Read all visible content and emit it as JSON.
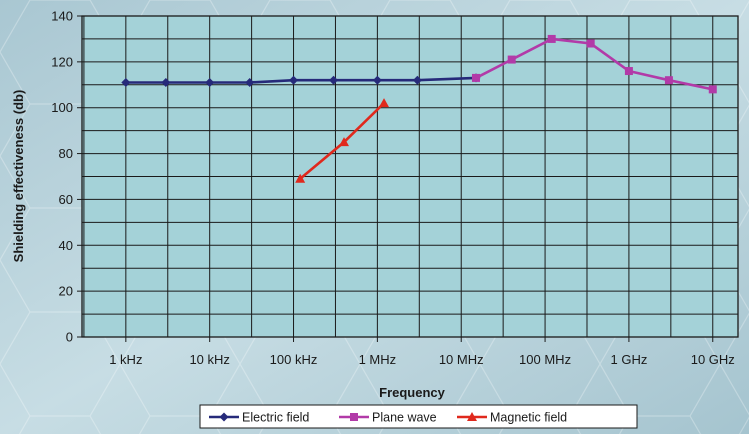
{
  "chart_data": {
    "type": "line",
    "xlabel": "Frequency",
    "ylabel": "Shielding effectiveness (db)",
    "ylim": [
      0,
      140
    ],
    "yticks": [
      0,
      20,
      40,
      60,
      80,
      100,
      120,
      140
    ],
    "x_scale": "log",
    "xlim_hz": [
      300,
      20000000000
    ],
    "xtick_values_hz": [
      1000,
      10000,
      100000,
      1000000,
      10000000,
      100000000,
      1000000000,
      10000000000
    ],
    "xtick_labels": [
      "1 kHz",
      "10 kHz",
      "100 kHz",
      "1 MHz",
      "10 MHz",
      "100 MHz",
      "1 GHz",
      "10 GHz"
    ],
    "grid": true,
    "legend_position": "bottom",
    "series": [
      {
        "name": "Electric field",
        "color": "#262a7a",
        "marker": "diamond",
        "x_hz": [
          1000,
          3000,
          10000,
          30000,
          100000,
          300000,
          1000000,
          3000000,
          15000000
        ],
        "y": [
          111,
          111,
          111,
          111,
          112,
          112,
          112,
          112,
          113
        ]
      },
      {
        "name": "Plane wave",
        "color": "#b23aa8",
        "marker": "square",
        "x_hz": [
          15000000,
          40000000,
          120000000,
          350000000,
          1000000000,
          3000000000,
          10000000000
        ],
        "y": [
          113,
          121,
          130,
          128,
          116,
          112,
          108
        ]
      },
      {
        "name": "Magnetic field",
        "color": "#e0291d",
        "marker": "triangle",
        "x_hz": [
          120000,
          400000,
          1200000
        ],
        "y": [
          69,
          85,
          102
        ]
      }
    ]
  }
}
